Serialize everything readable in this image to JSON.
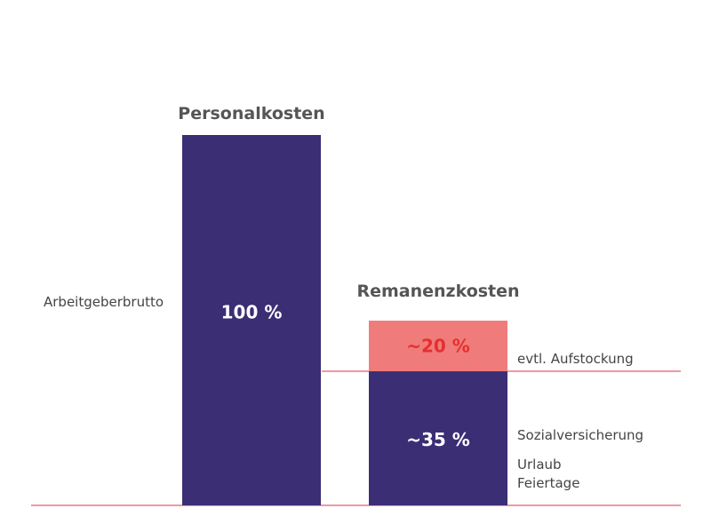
{
  "chart_data": {
    "type": "bar",
    "categories": [
      "Personalkosten",
      "Remanenzkosten"
    ],
    "series": [
      {
        "values": [
          100,
          35
        ],
        "labels": [
          "100 %",
          "~35 %"
        ],
        "color": "#3b2e74"
      },
      {
        "values": [
          0,
          20
        ],
        "labels": [
          "",
          "~20 %"
        ],
        "color": "#f07b7b"
      }
    ],
    "ylim": [
      0,
      100
    ],
    "annotations": {
      "left": "Arbeitgeberbrutto",
      "aufstockung": "evtl. Aufstockung",
      "sozial": "Sozialversicherung",
      "urlaub": "Urlaub",
      "feiertage": "Feiertage"
    },
    "colors": {
      "primary": "#3b2e74",
      "secondary": "#f07b7b",
      "secondary_text": "#e5302e",
      "line": "#e0304a",
      "title": "#555555"
    }
  }
}
